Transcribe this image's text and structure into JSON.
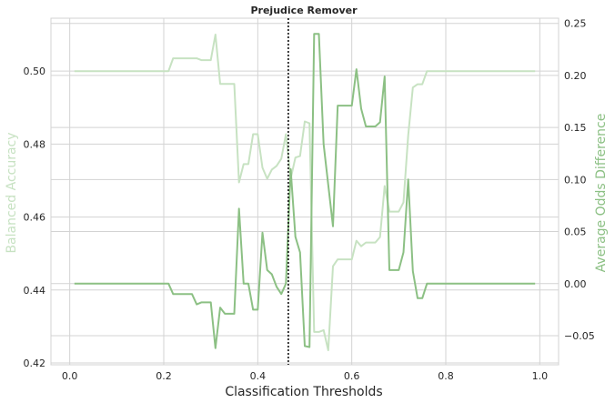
{
  "chart_data": {
    "type": "line",
    "title": "Prejudice Remover",
    "xlabel": "Classification Thresholds",
    "ylabel_left": "Balanced Accuracy",
    "ylabel_right": "Average Odds Difference",
    "xlim": [
      -0.04,
      1.04
    ],
    "ylim_left": [
      0.4195,
      0.5145
    ],
    "ylim_right": [
      -0.078,
      0.255
    ],
    "x_ticks": [
      0.0,
      0.2,
      0.4,
      0.6,
      0.8,
      1.0
    ],
    "x_tick_labels": [
      "0.0",
      "0.2",
      "0.4",
      "0.6",
      "0.8",
      "1.0"
    ],
    "y_left_ticks": [
      0.42,
      0.44,
      0.46,
      0.48,
      0.5
    ],
    "y_left_tick_labels": [
      "0.42",
      "0.44",
      "0.46",
      "0.48",
      "0.50"
    ],
    "y_right_ticks": [
      -0.05,
      0.0,
      0.05,
      0.1,
      0.15,
      0.2,
      0.25
    ],
    "y_right_tick_labels": [
      "−0.05",
      "0.00",
      "0.05",
      "0.10",
      "0.15",
      "0.20",
      "0.25"
    ],
    "vline_x": 0.465,
    "grid": true,
    "colors": {
      "balanced_accuracy": "#c7e2c2",
      "avg_odds": "#8cc084",
      "left_label": "#c7e2c2",
      "right_label": "#8cc084",
      "grid": "#d3d3d3",
      "vline": "#000000"
    },
    "series": [
      {
        "axis": "left",
        "x": [
          0.01,
          0.02,
          0.03,
          0.04,
          0.05,
          0.06,
          0.07,
          0.08,
          0.09,
          0.1,
          0.11,
          0.12,
          0.13,
          0.14,
          0.15,
          0.16,
          0.17,
          0.18,
          0.19,
          0.2,
          0.21,
          0.22,
          0.23,
          0.24,
          0.25,
          0.26,
          0.27,
          0.28,
          0.29,
          0.3,
          0.31,
          0.32,
          0.33,
          0.34,
          0.35,
          0.36,
          0.37,
          0.38,
          0.39,
          0.4,
          0.41,
          0.42,
          0.43,
          0.44,
          0.45,
          0.46,
          0.47,
          0.48,
          0.49,
          0.5,
          0.51,
          0.52,
          0.53,
          0.54,
          0.55,
          0.56,
          0.57,
          0.58,
          0.59,
          0.6,
          0.61,
          0.62,
          0.63,
          0.64,
          0.65,
          0.66,
          0.67,
          0.68,
          0.69,
          0.7,
          0.71,
          0.72,
          0.73,
          0.74,
          0.75,
          0.76,
          0.77,
          0.78,
          0.79,
          0.8,
          0.81,
          0.82,
          0.83,
          0.84,
          0.85,
          0.86,
          0.87,
          0.88,
          0.89,
          0.9,
          0.91,
          0.92,
          0.93,
          0.94,
          0.95,
          0.96,
          0.97,
          0.98,
          0.99
        ],
        "values": [
          0.5,
          0.5,
          0.5,
          0.5,
          0.5,
          0.5,
          0.5,
          0.5,
          0.5,
          0.5,
          0.5,
          0.5,
          0.5,
          0.5,
          0.5,
          0.5,
          0.5,
          0.5,
          0.5,
          0.5,
          0.5,
          0.5035,
          0.5035,
          0.5035,
          0.5035,
          0.5035,
          0.5035,
          0.503,
          0.503,
          0.503,
          0.51,
          0.4965,
          0.4965,
          0.4965,
          0.4965,
          0.4695,
          0.4745,
          0.4745,
          0.4827,
          0.4827,
          0.4735,
          0.4705,
          0.473,
          0.474,
          0.476,
          0.4827,
          0.4705,
          0.4763,
          0.4767,
          0.4862,
          0.4857,
          0.4285,
          0.4285,
          0.429,
          0.4235,
          0.4465,
          0.4484,
          0.4484,
          0.4484,
          0.4484,
          0.4535,
          0.452,
          0.453,
          0.453,
          0.453,
          0.4545,
          0.4685,
          0.4615,
          0.4615,
          0.4615,
          0.464,
          0.4824,
          0.4955,
          0.4964,
          0.4964,
          0.5,
          0.5,
          0.5,
          0.5,
          0.5,
          0.5,
          0.5,
          0.5,
          0.5,
          0.5,
          0.5,
          0.5,
          0.5,
          0.5,
          0.5,
          0.5,
          0.5,
          0.5,
          0.5,
          0.5,
          0.5,
          0.5,
          0.5,
          0.5
        ]
      },
      {
        "axis": "right",
        "x": [
          0.01,
          0.02,
          0.03,
          0.04,
          0.05,
          0.06,
          0.07,
          0.08,
          0.09,
          0.1,
          0.11,
          0.12,
          0.13,
          0.14,
          0.15,
          0.16,
          0.17,
          0.18,
          0.19,
          0.2,
          0.21,
          0.22,
          0.23,
          0.24,
          0.25,
          0.26,
          0.27,
          0.28,
          0.29,
          0.3,
          0.31,
          0.32,
          0.33,
          0.34,
          0.35,
          0.36,
          0.37,
          0.38,
          0.39,
          0.4,
          0.41,
          0.42,
          0.43,
          0.44,
          0.45,
          0.46,
          0.47,
          0.48,
          0.49,
          0.5,
          0.51,
          0.52,
          0.53,
          0.54,
          0.55,
          0.56,
          0.57,
          0.58,
          0.59,
          0.6,
          0.61,
          0.62,
          0.63,
          0.64,
          0.65,
          0.66,
          0.67,
          0.68,
          0.69,
          0.7,
          0.71,
          0.72,
          0.73,
          0.74,
          0.75,
          0.76,
          0.77,
          0.78,
          0.79,
          0.8,
          0.81,
          0.82,
          0.83,
          0.84,
          0.85,
          0.86,
          0.87,
          0.88,
          0.89,
          0.9,
          0.91,
          0.92,
          0.93,
          0.94,
          0.95,
          0.96,
          0.97,
          0.98,
          0.99
        ],
        "values": [
          0.0,
          0.0,
          0.0,
          0.0,
          0.0,
          0.0,
          0.0,
          0.0,
          0.0,
          0.0,
          0.0,
          0.0,
          0.0,
          0.0,
          0.0,
          0.0,
          0.0,
          0.0,
          0.0,
          0.0,
          0.0,
          -0.01,
          -0.01,
          -0.01,
          -0.01,
          -0.01,
          -0.02,
          -0.018,
          -0.018,
          -0.018,
          -0.062,
          -0.023,
          -0.029,
          -0.029,
          -0.029,
          0.072,
          0.0,
          0.0,
          -0.025,
          -0.025,
          0.049,
          0.013,
          0.009,
          -0.003,
          -0.01,
          0.0,
          0.11,
          0.045,
          0.03,
          -0.06,
          -0.061,
          0.24,
          0.24,
          0.134,
          0.095,
          0.055,
          0.171,
          0.171,
          0.171,
          0.171,
          0.206,
          0.168,
          0.151,
          0.151,
          0.151,
          0.155,
          0.199,
          0.013,
          0.013,
          0.013,
          0.03,
          0.1,
          0.012,
          -0.014,
          -0.014,
          0.0,
          0.0,
          0.0,
          0.0,
          0.0,
          0.0,
          0.0,
          0.0,
          0.0,
          0.0,
          0.0,
          0.0,
          0.0,
          0.0,
          0.0,
          0.0,
          0.0,
          0.0,
          0.0,
          0.0,
          0.0,
          0.0,
          0.0,
          0.0
        ]
      }
    ]
  }
}
